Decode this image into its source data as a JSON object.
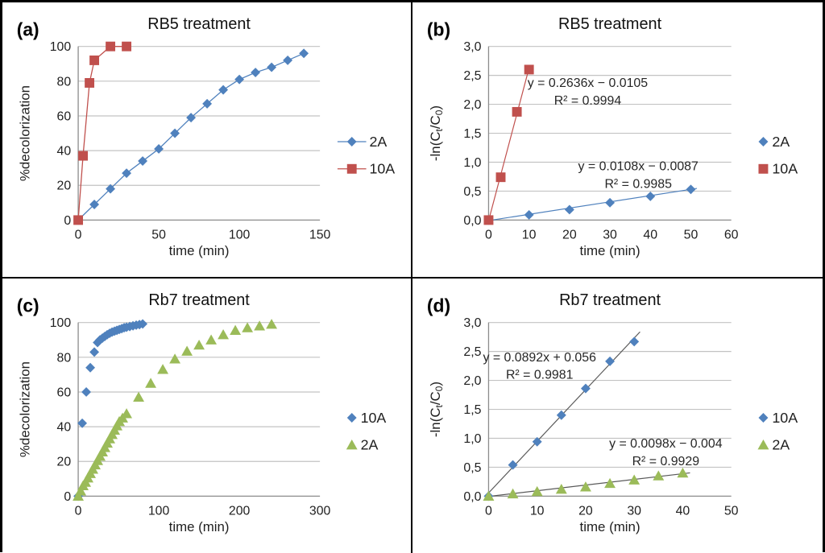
{
  "figure": {
    "border_color": "#000000",
    "background": "#ffffff"
  },
  "colors": {
    "series_blue": "#4F81BD",
    "series_red": "#C0504D",
    "series_green": "#9BBB59",
    "gridline": "#C3C3C3",
    "axis": "#8C8C8C",
    "text": "#1F1F1F",
    "annotation": "#262626",
    "trendline_dark": "#595959"
  },
  "chart_data": [
    {
      "panel_label": "(a)",
      "type": "scatter",
      "title": "RB5 treatment",
      "xlabel": "time (min)",
      "ylabel": "%decolorization",
      "ylabel_parts": [
        {
          "t": "%decolorization"
        }
      ],
      "xlim": [
        0,
        150
      ],
      "ylim": [
        0,
        100
      ],
      "grid": "horizontal",
      "legend_position": "right",
      "xticks": [
        {
          "v": 0,
          "label": "0"
        },
        {
          "v": 50,
          "label": "50"
        },
        {
          "v": 100,
          "label": "100"
        },
        {
          "v": 150,
          "label": "150"
        }
      ],
      "yticks": [
        {
          "v": 0,
          "label": "0"
        },
        {
          "v": 20,
          "label": "20"
        },
        {
          "v": 40,
          "label": "40"
        },
        {
          "v": 60,
          "label": "60"
        },
        {
          "v": 80,
          "label": "80"
        },
        {
          "v": 100,
          "label": "100"
        }
      ],
      "series": [
        {
          "name": "2A",
          "marker": "diamond",
          "color": "#4F81BD",
          "connect": true,
          "points": [
            [
              0,
              0
            ],
            [
              10,
              9
            ],
            [
              20,
              18
            ],
            [
              30,
              27
            ],
            [
              40,
              34
            ],
            [
              50,
              41
            ],
            [
              60,
              50
            ],
            [
              70,
              59
            ],
            [
              80,
              67
            ],
            [
              90,
              75
            ],
            [
              100,
              81
            ],
            [
              110,
              85
            ],
            [
              120,
              88
            ],
            [
              130,
              92
            ],
            [
              140,
              96
            ]
          ]
        },
        {
          "name": "10A",
          "marker": "square",
          "color": "#C0504D",
          "connect": true,
          "points": [
            [
              0,
              0
            ],
            [
              3,
              37
            ],
            [
              7,
              79
            ],
            [
              10,
              92
            ],
            [
              20,
              100
            ],
            [
              30,
              100
            ]
          ]
        }
      ],
      "trendlines": [],
      "annotations": [],
      "legend": [
        {
          "name": "2A",
          "marker": "diamond",
          "color": "#4F81BD",
          "line": true
        },
        {
          "name": "10A",
          "marker": "square",
          "color": "#C0504D",
          "line": true
        }
      ]
    },
    {
      "panel_label": "(b)",
      "type": "scatter",
      "title": "RB5 treatment",
      "xlabel": "time (min)",
      "ylabel": "-ln(Ct/C0)",
      "ylabel_parts": [
        {
          "t": "-ln(C"
        },
        {
          "t": "t",
          "sub": true
        },
        {
          "t": "/C"
        },
        {
          "t": "0",
          "sub": true
        },
        {
          "t": ")"
        }
      ],
      "xlim": [
        0,
        60
      ],
      "ylim": [
        0,
        3
      ],
      "grid": "horizontal",
      "legend_position": "right",
      "xticks": [
        {
          "v": 0,
          "label": "0"
        },
        {
          "v": 10,
          "label": "10"
        },
        {
          "v": 20,
          "label": "20"
        },
        {
          "v": 30,
          "label": "30"
        },
        {
          "v": 40,
          "label": "40"
        },
        {
          "v": 50,
          "label": "50"
        },
        {
          "v": 60,
          "label": "60"
        }
      ],
      "yticks": [
        {
          "v": 0,
          "label": "0,0"
        },
        {
          "v": 0.5,
          "label": "0,5"
        },
        {
          "v": 1,
          "label": "1,0"
        },
        {
          "v": 1.5,
          "label": "1,5"
        },
        {
          "v": 2,
          "label": "2,0"
        },
        {
          "v": 2.5,
          "label": "2,5"
        },
        {
          "v": 3,
          "label": "3,0"
        }
      ],
      "series": [
        {
          "name": "2A",
          "marker": "diamond",
          "color": "#4F81BD",
          "connect": false,
          "points": [
            [
              0,
              0
            ],
            [
              10,
              0.09
            ],
            [
              20,
              0.18
            ],
            [
              30,
              0.3
            ],
            [
              40,
              0.41
            ],
            [
              50,
              0.53
            ]
          ]
        },
        {
          "name": "10A",
          "marker": "square",
          "color": "#C0504D",
          "connect": false,
          "points": [
            [
              0,
              0
            ],
            [
              3,
              0.74
            ],
            [
              7,
              1.87
            ],
            [
              10,
              2.6
            ]
          ]
        }
      ],
      "trendlines": [
        {
          "series": "10A",
          "slope": 0.2636,
          "intercept": -0.0105,
          "x_from": 0,
          "x_to": 10.2,
          "color": "#C0504D"
        },
        {
          "series": "2A",
          "slope": 0.0108,
          "intercept": -0.0087,
          "x_from": 0,
          "x_to": 51.5,
          "color": "#4F81BD"
        }
      ],
      "annotations": [
        {
          "lines": [
            "y = 0.2636x − 0.0105",
            "R² = 0.9994"
          ],
          "x": 24.5,
          "y": 2.3
        },
        {
          "lines": [
            "y = 0.0108x − 0.0087",
            "R² = 0.9985"
          ],
          "x": 37,
          "y": 0.86
        }
      ],
      "legend": [
        {
          "name": "2A",
          "marker": "diamond",
          "color": "#4F81BD",
          "line": false
        },
        {
          "name": "10A",
          "marker": "square",
          "color": "#C0504D",
          "line": false
        }
      ]
    },
    {
      "panel_label": "(c)",
      "type": "scatter",
      "title": "Rb7 treatment",
      "xlabel": "time (min)",
      "ylabel": "%decolorization",
      "ylabel_parts": [
        {
          "t": "%decolorization"
        }
      ],
      "xlim": [
        0,
        300
      ],
      "ylim": [
        0,
        100
      ],
      "grid": "horizontal",
      "legend_position": "right",
      "xticks": [
        {
          "v": 0,
          "label": "0"
        },
        {
          "v": 100,
          "label": "100"
        },
        {
          "v": 200,
          "label": "200"
        },
        {
          "v": 300,
          "label": "300"
        }
      ],
      "yticks": [
        {
          "v": 0,
          "label": "0"
        },
        {
          "v": 20,
          "label": "20"
        },
        {
          "v": 40,
          "label": "40"
        },
        {
          "v": 60,
          "label": "60"
        },
        {
          "v": 80,
          "label": "80"
        },
        {
          "v": 100,
          "label": "100"
        }
      ],
      "series": [
        {
          "name": "10A",
          "marker": "diamond",
          "color": "#4F81BD",
          "connect": false,
          "points": [
            [
              0,
              0
            ],
            [
              5,
              42
            ],
            [
              10,
              60
            ],
            [
              15,
              74
            ],
            [
              20,
              83
            ],
            [
              24,
              88.5
            ],
            [
              27,
              90
            ],
            [
              30,
              91
            ],
            [
              33,
              92
            ],
            [
              36,
              93
            ],
            [
              39,
              93.8
            ],
            [
              42,
              94.5
            ],
            [
              45,
              95
            ],
            [
              48,
              95.5
            ],
            [
              51,
              96
            ],
            [
              54,
              96.5
            ],
            [
              57,
              97
            ],
            [
              60,
              97.3
            ],
            [
              64,
              97.7
            ],
            [
              68,
              98.1
            ],
            [
              72,
              98.5
            ],
            [
              76,
              98.8
            ],
            [
              80,
              99.2
            ]
          ]
        },
        {
          "name": "2A",
          "marker": "triangle",
          "color": "#9BBB59",
          "connect": false,
          "points": [
            [
              0,
              0
            ],
            [
              3,
              3
            ],
            [
              6,
              6
            ],
            [
              9,
              8
            ],
            [
              12,
              10.5
            ],
            [
              15,
              13
            ],
            [
              18,
              15.5
            ],
            [
              21,
              18
            ],
            [
              24,
              20.5
            ],
            [
              27,
              23
            ],
            [
              30,
              25.5
            ],
            [
              33,
              28
            ],
            [
              36,
              30.5
            ],
            [
              39,
              33
            ],
            [
              42,
              35.5
            ],
            [
              45,
              38
            ],
            [
              48,
              40.5
            ],
            [
              51,
              43
            ],
            [
              55,
              45
            ],
            [
              60,
              47.5
            ],
            [
              75,
              57
            ],
            [
              90,
              65
            ],
            [
              105,
              73
            ],
            [
              120,
              79
            ],
            [
              135,
              83.5
            ],
            [
              150,
              87
            ],
            [
              165,
              90
            ],
            [
              180,
              93
            ],
            [
              195,
              95.5
            ],
            [
              210,
              97
            ],
            [
              225,
              98
            ],
            [
              240,
              99
            ]
          ]
        }
      ],
      "trendlines": [],
      "annotations": [],
      "legend": [
        {
          "name": "10A",
          "marker": "diamond",
          "color": "#4F81BD",
          "line": false
        },
        {
          "name": "2A",
          "marker": "triangle",
          "color": "#9BBB59",
          "line": false
        }
      ]
    },
    {
      "panel_label": "(d)",
      "type": "scatter",
      "title": "Rb7 treatment",
      "xlabel": "time (min)",
      "ylabel": "-ln(Ct/C0)",
      "ylabel_parts": [
        {
          "t": "-ln(C"
        },
        {
          "t": "t",
          "sub": true
        },
        {
          "t": "/C"
        },
        {
          "t": "0",
          "sub": true
        },
        {
          "t": ")"
        }
      ],
      "xlim": [
        0,
        50
      ],
      "ylim": [
        0,
        3
      ],
      "grid": "horizontal",
      "legend_position": "right",
      "xticks": [
        {
          "v": 0,
          "label": "0"
        },
        {
          "v": 10,
          "label": "10"
        },
        {
          "v": 20,
          "label": "20"
        },
        {
          "v": 30,
          "label": "30"
        },
        {
          "v": 40,
          "label": "40"
        },
        {
          "v": 50,
          "label": "50"
        }
      ],
      "yticks": [
        {
          "v": 0,
          "label": "0,0"
        },
        {
          "v": 0.5,
          "label": "0,5"
        },
        {
          "v": 1,
          "label": "1,0"
        },
        {
          "v": 1.5,
          "label": "1,5"
        },
        {
          "v": 2,
          "label": "2,0"
        },
        {
          "v": 2.5,
          "label": "2,5"
        },
        {
          "v": 3,
          "label": "3,0"
        }
      ],
      "series": [
        {
          "name": "10A",
          "marker": "diamond",
          "color": "#4F81BD",
          "connect": false,
          "points": [
            [
              0,
              0
            ],
            [
              5,
              0.54
            ],
            [
              10,
              0.94
            ],
            [
              15,
              1.4
            ],
            [
              20,
              1.86
            ],
            [
              25,
              2.33
            ],
            [
              30,
              2.67
            ]
          ]
        },
        {
          "name": "2A",
          "marker": "triangle",
          "color": "#9BBB59",
          "connect": false,
          "points": [
            [
              0,
              0
            ],
            [
              5,
              0.04
            ],
            [
              10,
              0.08
            ],
            [
              15,
              0.12
            ],
            [
              20,
              0.16
            ],
            [
              25,
              0.22
            ],
            [
              30,
              0.28
            ],
            [
              35,
              0.35
            ],
            [
              40,
              0.4
            ]
          ]
        }
      ],
      "trendlines": [
        {
          "series": "10A",
          "slope": 0.0892,
          "intercept": 0.056,
          "x_from": 0,
          "x_to": 31.2,
          "color": "#595959"
        },
        {
          "series": "2A",
          "slope": 0.0098,
          "intercept": -0.004,
          "x_from": 0,
          "x_to": 41.5,
          "color": "#595959"
        }
      ],
      "annotations": [
        {
          "lines": [
            "y = 0.0892x + 0.056",
            "R² = 0.9981"
          ],
          "x": 10.5,
          "y": 2.33
        },
        {
          "lines": [
            "y = 0.0098x − 0.004",
            "R² = 0.9929"
          ],
          "x": 36.5,
          "y": 0.84
        }
      ],
      "legend": [
        {
          "name": "10A",
          "marker": "diamond",
          "color": "#4F81BD",
          "line": false
        },
        {
          "name": "2A",
          "marker": "triangle",
          "color": "#9BBB59",
          "line": false
        }
      ]
    }
  ]
}
